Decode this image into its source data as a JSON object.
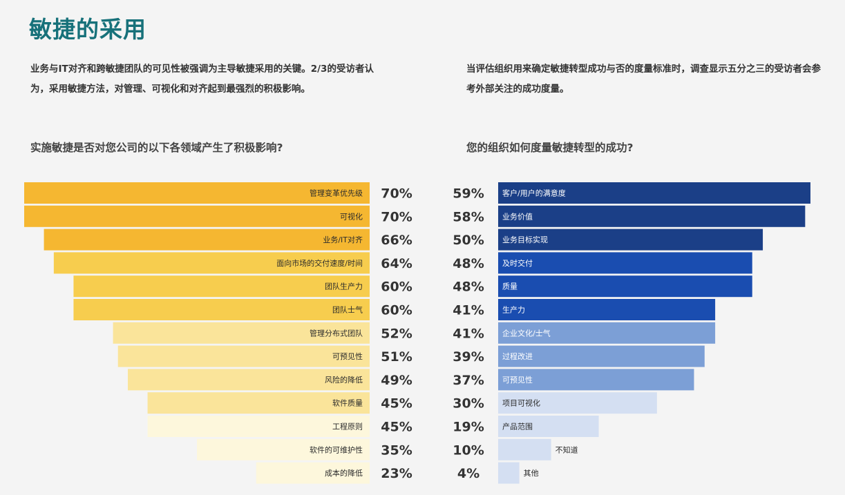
{
  "title": "敏捷的采用",
  "intro_left": "业务与IT对齐和跨敏捷团队的可见性被强调为主导敏捷采用的关键。2/3的受访者认为，采用敏捷方法，对管理、可视化和对齐起到最强烈的积极影响。",
  "intro_right": "当评估组织用来确定敏捷转型成功与否的度量标准时，调查显示五分之三的受访者会参考外部关注的成功度量。",
  "question_left": "实施敏捷是否对您公司的以下各领域产生了积极影响?",
  "question_right": "您的组织如何度量敏捷转型的成功?",
  "chart_data": [
    {
      "type": "bar",
      "orientation": "horizontal",
      "title": "实施敏捷是否对您公司的以下各领域产生了积极影响?",
      "xlim": [
        0,
        70
      ],
      "categories": [
        "管理变革优先级",
        "可视化",
        "业务/IT对齐",
        "面向市场的交付速度/时间",
        "团队生产力",
        "团队士气",
        "管理分布式团队",
        "可预见性",
        "风险的降低",
        "软件质量",
        "工程原则",
        "软件的可维护性",
        "成本的降低"
      ],
      "values": [
        70,
        70,
        66,
        64,
        60,
        60,
        52,
        51,
        49,
        45,
        45,
        35,
        23
      ],
      "value_labels": [
        "70%",
        "70%",
        "66%",
        "64%",
        "60%",
        "60%",
        "52%",
        "51%",
        "49%",
        "45%",
        "45%",
        "35%",
        "23%"
      ],
      "colors": [
        "#f5b731",
        "#f5b731",
        "#f5b731",
        "#f7cd4e",
        "#f7cd4e",
        "#f7cd4e",
        "#fae49a",
        "#fae49a",
        "#fae49a",
        "#fae49a",
        "#fdf7dc",
        "#fdf7dc",
        "#fdf7dc"
      ]
    },
    {
      "type": "bar",
      "orientation": "horizontal",
      "title": "您的组织如何度量敏捷转型的成功?",
      "xlim": [
        0,
        59
      ],
      "categories": [
        "客户/用户的满意度",
        "业务价值",
        "业务目标实现",
        "及时交付",
        "质量",
        "生产力",
        "企业文化/士气",
        "过程改进",
        "可预见性",
        "项目可视化",
        "产品范围",
        "不知道",
        "其他"
      ],
      "values": [
        59,
        58,
        50,
        48,
        48,
        41,
        41,
        39,
        37,
        30,
        19,
        10,
        4
      ],
      "value_labels": [
        "59%",
        "58%",
        "50%",
        "48%",
        "48%",
        "41%",
        "41%",
        "39%",
        "37%",
        "30%",
        "19%",
        "10%",
        "4%"
      ],
      "colors": [
        "#1b3f87",
        "#1b3f87",
        "#1b3f87",
        "#1a4db0",
        "#1a4db0",
        "#1a4db0",
        "#7c9fd6",
        "#7c9fd6",
        "#7c9fd6",
        "#d4dff2",
        "#d4dff2",
        "#d4dff2",
        "#d4dff2"
      ]
    }
  ]
}
